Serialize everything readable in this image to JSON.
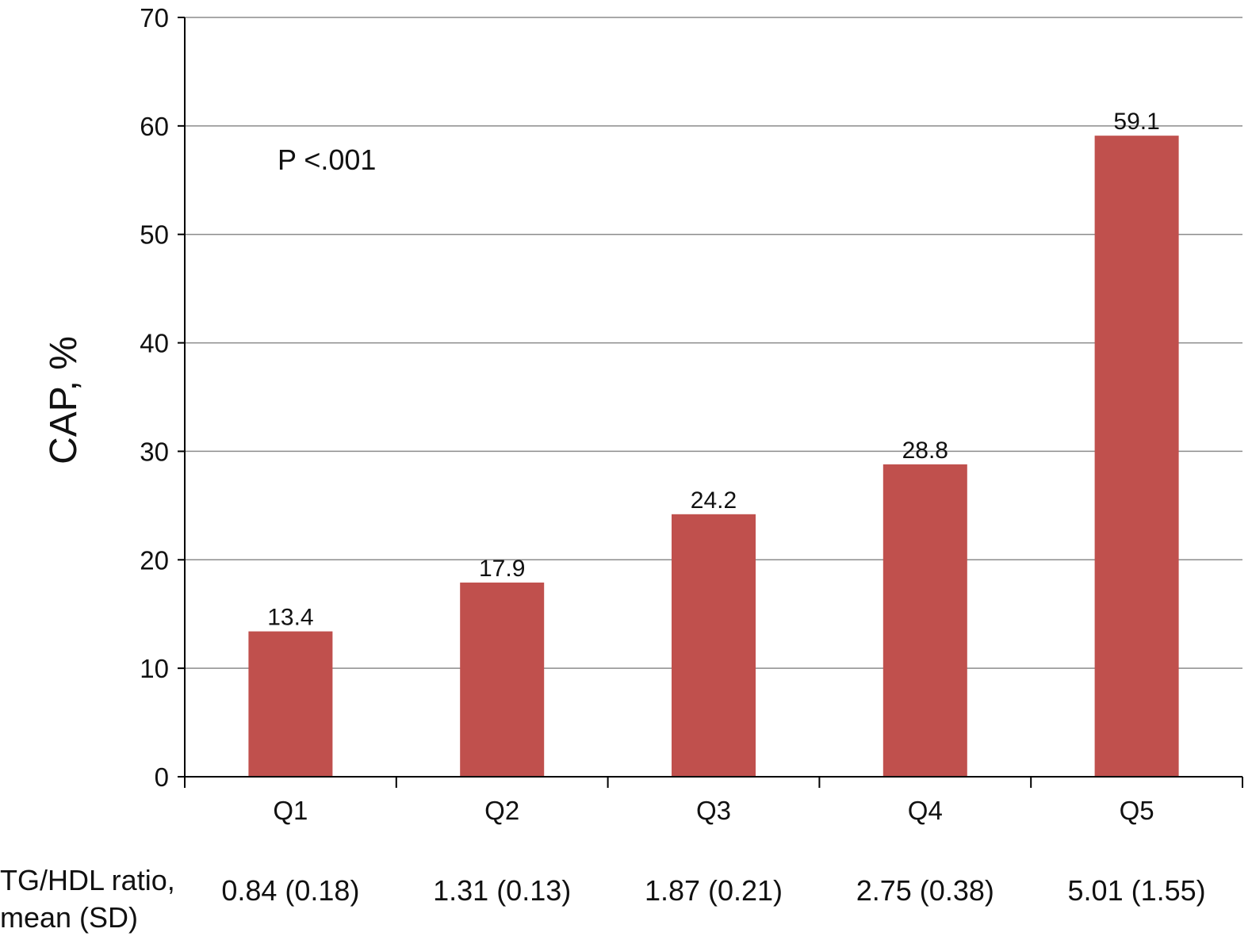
{
  "chart_data": {
    "type": "bar",
    "ylabel": "CAP, %",
    "ylim": [
      0,
      70
    ],
    "yticks": [
      0,
      10,
      20,
      30,
      40,
      50,
      60,
      70
    ],
    "grid": true,
    "legend": "none",
    "annotation": "P <.001",
    "categories": [
      "Q1",
      "Q2",
      "Q3",
      "Q4",
      "Q5"
    ],
    "values": [
      13.4,
      17.9,
      24.2,
      28.8,
      59.1
    ],
    "value_labels": [
      "13.4",
      "17.9",
      "24.2",
      "28.8",
      "59.1"
    ],
    "row_label_lines": [
      "TG/HDL ratio,",
      "mean (SD)"
    ],
    "row_values": [
      "0.84 (0.18)",
      "1.31 (0.13)",
      "1.87 (0.21)",
      "2.75 (0.38)",
      "5.01 (1.55)"
    ],
    "colors": {
      "bar": "#c0504d",
      "grid": "#8c8c8c",
      "axis": "#000000"
    }
  }
}
